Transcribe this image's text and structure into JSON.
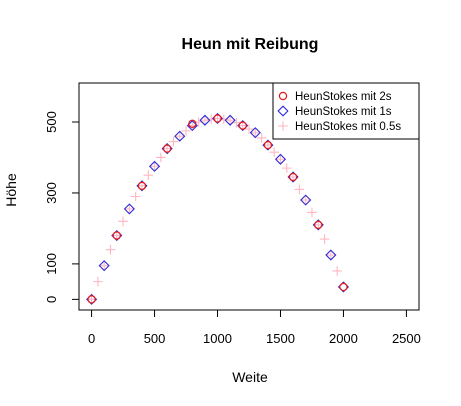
{
  "chart_data": {
    "type": "scatter",
    "title": "Heun mit Reibung",
    "xlabel": "Weite",
    "ylabel": "Höhe",
    "xlim": [
      -100,
      2600
    ],
    "ylim": [
      -30,
      610
    ],
    "xticks": [
      "0",
      "500",
      "1000",
      "1500",
      "2000",
      "2500"
    ],
    "xtick_values": [
      0,
      500,
      1000,
      1500,
      2000,
      2500
    ],
    "yticks": [
      "0",
      "100",
      "300",
      "500"
    ],
    "ytick_values": [
      0,
      100,
      300,
      500
    ],
    "legend_position": "top-right",
    "series": [
      {
        "name": "HeunStokes mit 2s",
        "marker": "circle",
        "color": "#e41a1c",
        "x": [
          0,
          200,
          400,
          600,
          800,
          1000,
          1200,
          1400,
          1600,
          1800,
          2000
        ],
        "y": [
          0,
          180,
          320,
          425,
          495,
          510,
          490,
          435,
          345,
          210,
          35
        ]
      },
      {
        "name": "HeunStokes mit 1s",
        "marker": "diamond",
        "color": "#2b2bd6",
        "x": [
          0,
          100,
          200,
          300,
          400,
          500,
          600,
          700,
          800,
          900,
          1000,
          1100,
          1200,
          1300,
          1400,
          1500,
          1600,
          1700,
          1800,
          1900,
          2000
        ],
        "y": [
          0,
          95,
          180,
          255,
          320,
          375,
          425,
          460,
          490,
          505,
          510,
          505,
          490,
          470,
          435,
          395,
          345,
          280,
          210,
          125,
          35
        ]
      },
      {
        "name": "HeunStokes mit 0.5s",
        "marker": "plus",
        "color": "#ffb6c1",
        "x": [
          0,
          50,
          100,
          150,
          200,
          250,
          300,
          350,
          400,
          450,
          500,
          550,
          600,
          650,
          700,
          750,
          800,
          850,
          900,
          950,
          1000,
          1050,
          1100,
          1150,
          1200,
          1250,
          1300,
          1350,
          1400,
          1450,
          1500,
          1550,
          1600,
          1650,
          1700,
          1750,
          1800,
          1850,
          1900,
          1950
        ],
        "y": [
          0,
          50,
          95,
          140,
          180,
          220,
          255,
          290,
          320,
          350,
          375,
          400,
          425,
          445,
          460,
          475,
          490,
          500,
          505,
          508,
          510,
          508,
          505,
          498,
          490,
          480,
          470,
          455,
          435,
          415,
          395,
          370,
          345,
          310,
          280,
          245,
          210,
          170,
          125,
          80
        ]
      }
    ]
  }
}
